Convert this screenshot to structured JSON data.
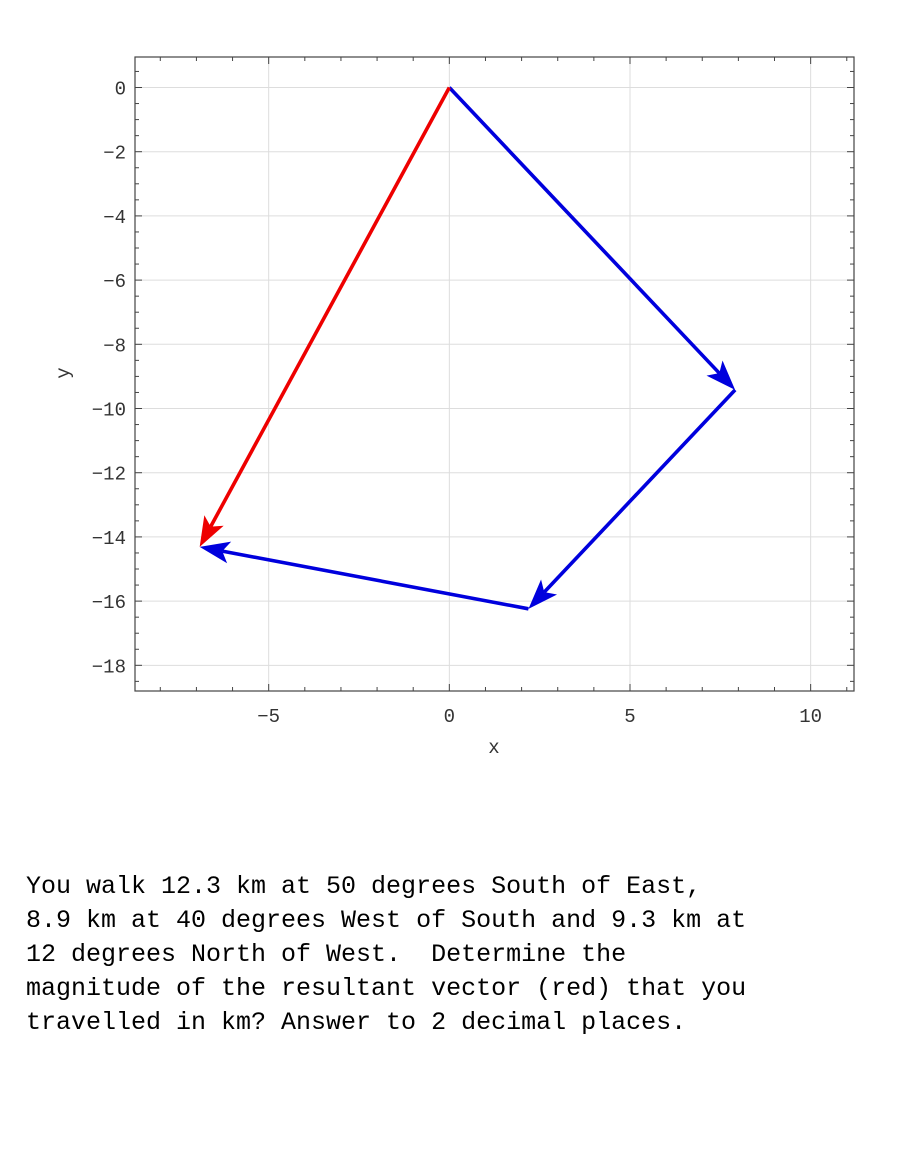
{
  "chart_data": {
    "type": "vector",
    "xlabel": "x",
    "ylabel": "y",
    "xlim": [
      -8.7,
      11.2
    ],
    "ylim": [
      -18.8,
      0.95
    ],
    "xticks": [
      -5,
      0,
      5,
      10
    ],
    "yticks": [
      0,
      -2,
      -4,
      -6,
      -8,
      -10,
      -12,
      -14,
      -16,
      -18
    ],
    "grid": true,
    "vectors": [
      {
        "from": [
          0,
          0
        ],
        "to": [
          7.91,
          -9.42
        ],
        "color": "#0000dd"
      },
      {
        "from": [
          7.91,
          -9.42
        ],
        "to": [
          2.19,
          -16.24
        ],
        "color": "#0000dd"
      },
      {
        "from": [
          2.19,
          -16.24
        ],
        "to": [
          -6.91,
          -14.31
        ],
        "color": "#0000dd"
      },
      {
        "from": [
          0,
          0
        ],
        "to": [
          -6.91,
          -14.31
        ],
        "color": "#ee0000"
      }
    ]
  },
  "question": {
    "lines": [
      "You walk 12.3 km at 50 degrees South of East,",
      "8.9 km at 40 degrees West of South and 9.3 km at",
      "12 degrees North of West.  Determine the",
      "magnitude of the resultant vector (red) that you",
      "travelled in km? Answer to 2 decimal places."
    ]
  }
}
